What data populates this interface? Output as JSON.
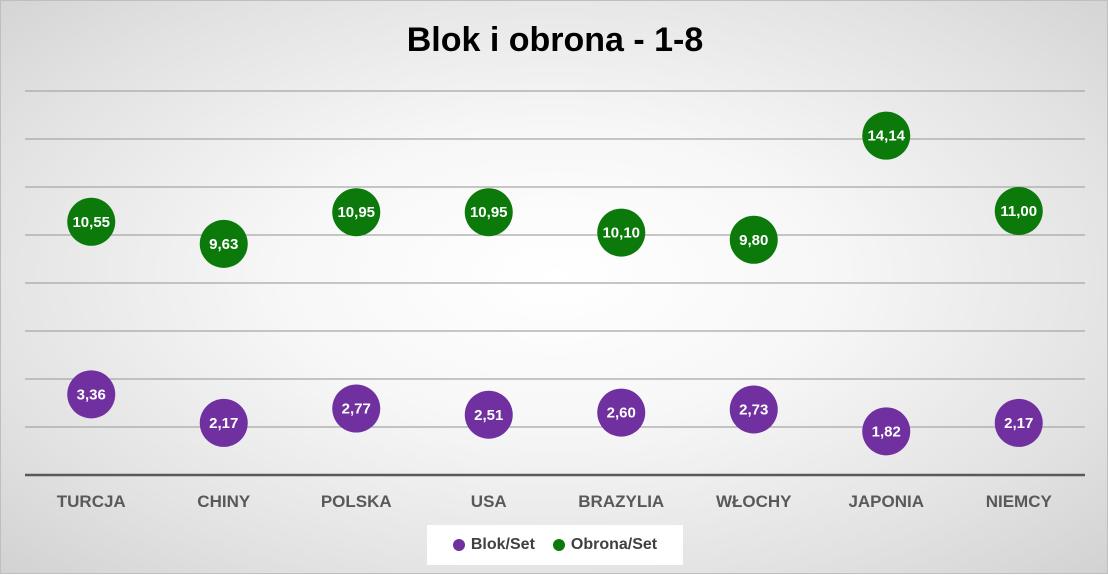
{
  "chart_data": {
    "type": "scatter",
    "title": "Blok i obrona - 1-8",
    "categories": [
      "TURCJA",
      "CHINY",
      "POLSKA",
      "USA",
      "BRAZYLIA",
      "WŁOCHY",
      "JAPONIA",
      "NIEMCY"
    ],
    "series": [
      {
        "name": "Blok/Set",
        "color": "#7030a0",
        "values": [
          3.36,
          2.17,
          2.77,
          2.51,
          2.6,
          2.73,
          1.82,
          2.17
        ],
        "labels": [
          "3,36",
          "2,17",
          "2,77",
          "2,51",
          "2,60",
          "2,73",
          "1,82",
          "2,17"
        ]
      },
      {
        "name": "Obrona/Set",
        "color": "#0b7a0b",
        "values": [
          10.55,
          9.63,
          10.95,
          10.95,
          10.1,
          9.8,
          14.14,
          11.0
        ],
        "labels": [
          "10,55",
          "9,63",
          "10,95",
          "10,95",
          "10,10",
          "9,80",
          "14,14",
          "11,00"
        ]
      }
    ],
    "ylim": [
      0,
      16
    ],
    "y_gridlines": [
      0,
      2,
      4,
      6,
      8,
      10,
      12,
      14,
      16
    ],
    "y_tick_labels_visible": false,
    "grid": true,
    "legend_position": "bottom",
    "background": "radial-gradient-gray"
  }
}
